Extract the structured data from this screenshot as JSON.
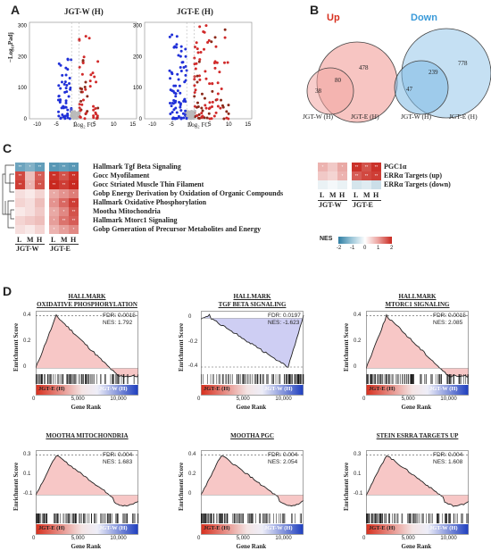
{
  "panels": {
    "A": "A",
    "B": "B",
    "C": "C",
    "D": "D"
  },
  "volcano": {
    "titles": [
      "JGT-W (H)",
      "JGT-E (H)"
    ],
    "ylabel": "−Log₁₀Padj",
    "xlabel": "Log₂ FC",
    "yticks": [
      "0",
      "100",
      "200",
      "300"
    ],
    "xticks": [
      "-10",
      "-5",
      "0",
      "5",
      "10",
      "15"
    ]
  },
  "venn": {
    "up_label": "Up",
    "down_label": "Down",
    "up": {
      "left": "38",
      "overlap": "80",
      "right": "478",
      "left_name": "JGT-W (H)",
      "right_name": "JGT-E (H)"
    },
    "down": {
      "left": "47",
      "overlap": "239",
      "right": "778",
      "left_name": "JGT-W (H)",
      "right_name": "JGT-E (H)"
    }
  },
  "heatmap": {
    "rows": [
      "Hallmark Tgf Beta Signaling",
      "Gocc Myofilament",
      "Gocc Striated Muscle Thin Filament",
      "Gobp Energy Derivation by Oxidation of Organic Compounds",
      "Hallmark Oxidative Phosphorylation",
      "Mootha Mitochondria",
      "Hallmark Mtorc1 Signaling",
      "Gobp Generation of Precursor Metabolites and Energy"
    ],
    "cols": [
      "L",
      "M",
      "H",
      "L",
      "M",
      "H"
    ],
    "groups": [
      "JGT-W",
      "JGT-E"
    ],
    "right_rows": [
      "PGC1α",
      "ERRα Targets (up)",
      "ERRα Targets (down)"
    ],
    "nes_label": "NES",
    "nes_ticks": [
      "-2",
      "-1",
      "0",
      "1",
      "2"
    ]
  },
  "gsea": [
    {
      "title1": "HALLMARK",
      "title2": "OXIDATIVE PHOSPHORYLATION",
      "fdr": "FDR: 0.0015",
      "nes": "NES: 1.792",
      "yticks": [
        "0.4",
        "0.2",
        "0"
      ]
    },
    {
      "title1": "HALLMARK",
      "title2": "TGF BETA SIGNALING",
      "fdr": "FDR: 0.0197",
      "nes": "NES: -1.623",
      "yticks": [
        "0",
        "-0.2",
        "-0.4"
      ]
    },
    {
      "title1": "HALLMARK",
      "title2": "MTORC1 SIGNALING",
      "fdr": "FDR: 0.0015",
      "nes": "NES: 2.085",
      "yticks": [
        "0.4",
        "0.2",
        "0"
      ]
    },
    {
      "title1": "",
      "title2": "MOOTHA MITOCHONDRIA",
      "fdr": "FDR: 0.004",
      "nes": "NES: 1.683",
      "yticks": [
        "0.3",
        "0.1",
        "-0.1"
      ]
    },
    {
      "title1": "",
      "title2": "MOOTHA PGC",
      "fdr": "FDR: 0.004",
      "nes": "NES: 2.054",
      "yticks": [
        "0.4",
        "0.2",
        "0"
      ]
    },
    {
      "title1": "",
      "title2": "STEIN ESRRA TARGETS UP",
      "fdr": "FDR: 0.004",
      "nes": "NES: 1.608",
      "yticks": [
        "0.3",
        "0.1",
        "-0.1"
      ]
    }
  ],
  "gsea_common": {
    "ylabel": "Enrichment Score",
    "xlabel": "Gene Rank",
    "xticks": [
      "0",
      "5,000",
      "10,000"
    ],
    "left_bar": "JGT-E (H)",
    "right_bar": "JGT-W (H)"
  },
  "colors": {
    "red": "#d7301f",
    "blue": "#1f3fbf",
    "pink": "#f6c1c0",
    "lightblue": "#c9c9f2"
  }
}
